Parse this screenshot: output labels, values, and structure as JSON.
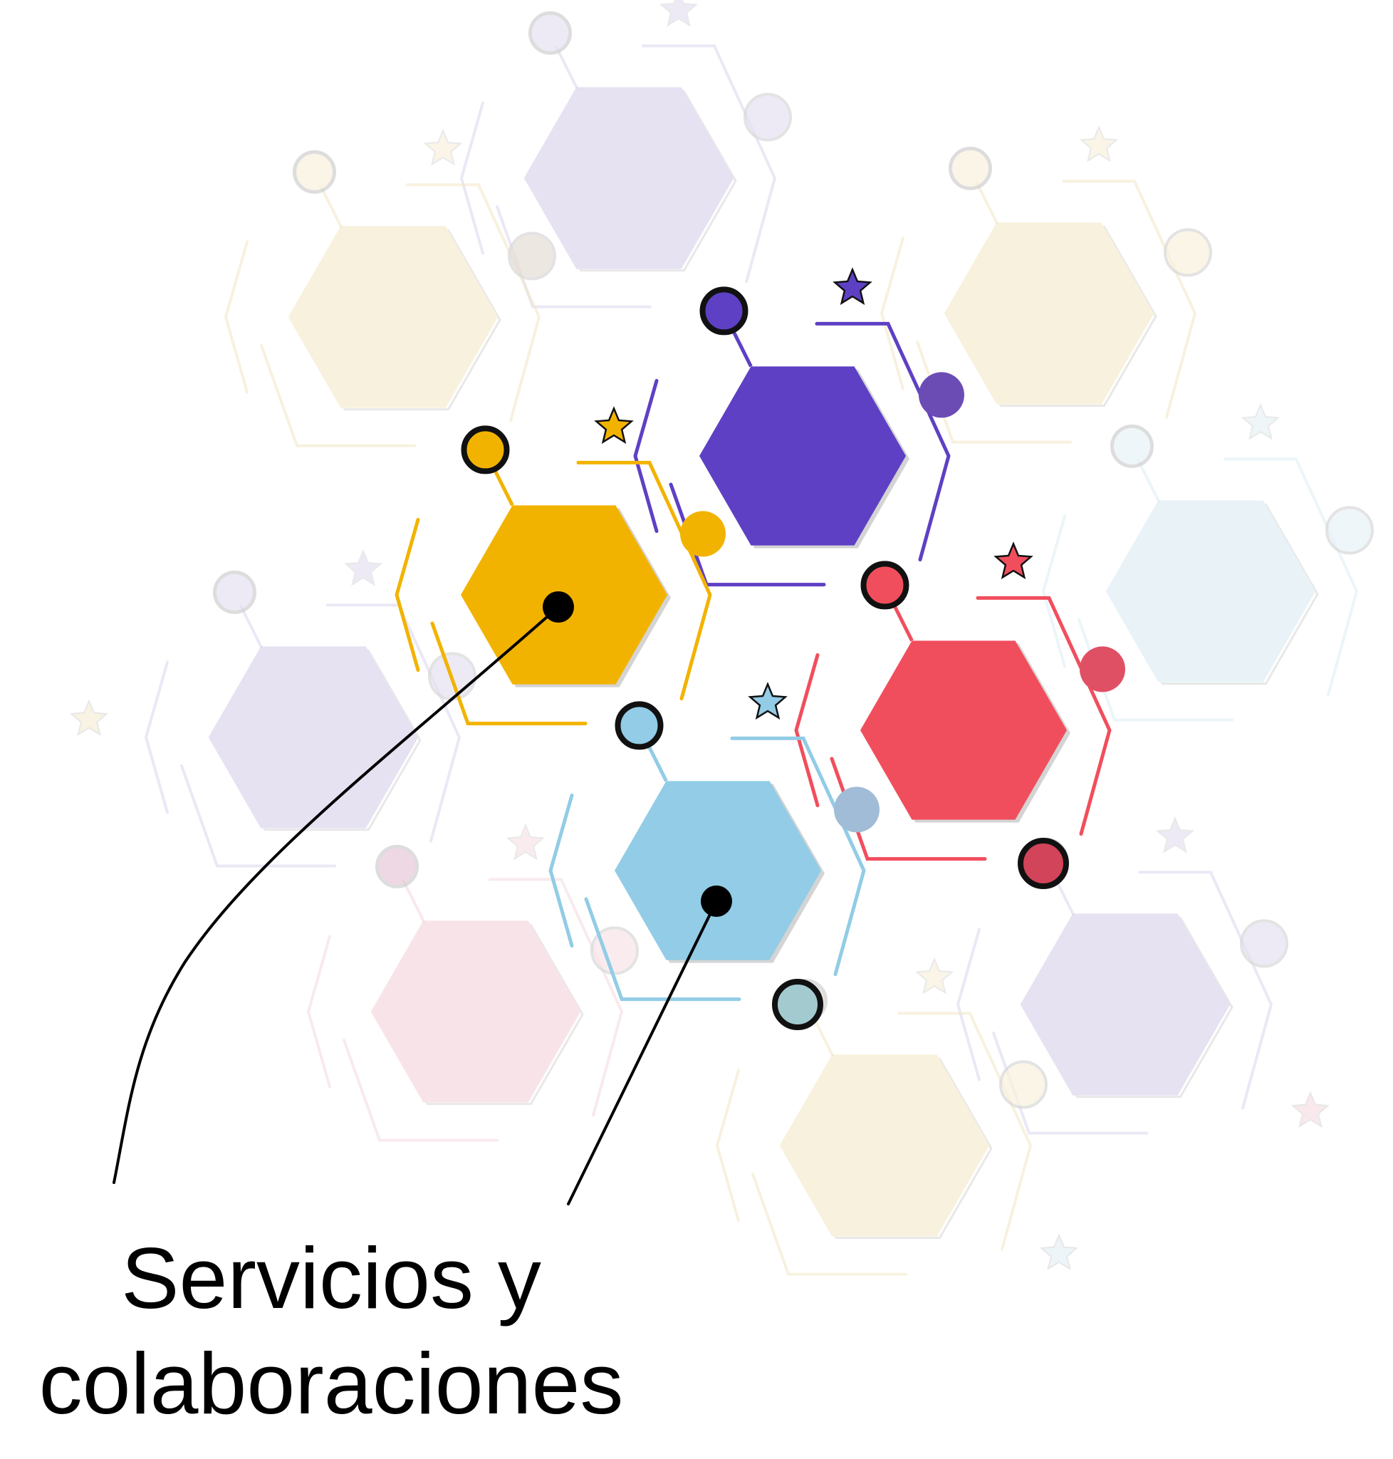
{
  "caption": {
    "line1": "Servicios y",
    "line2": "colaboraciones"
  },
  "colors": {
    "purple": "#5e40c4",
    "yellow": "#f2b300",
    "red": "#f14e5d",
    "blue": "#92cce6",
    "faint_purple": "#e6e2f2",
    "faint_yellow": "#f8f1de",
    "faint_red": "#f8e4e8",
    "faint_blue": "#e9f3f7",
    "pointer": "#000000"
  },
  "icons": [
    "star-icon"
  ]
}
